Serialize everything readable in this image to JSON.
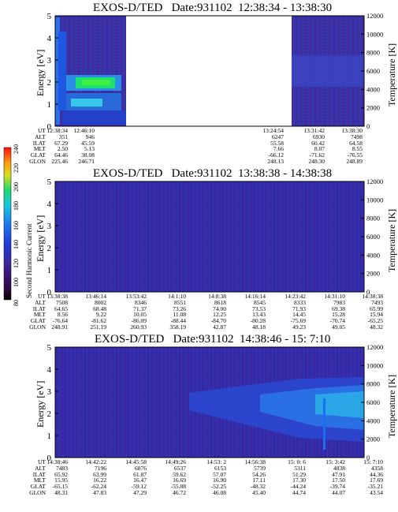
{
  "panels": [
    {
      "title": "EXOS-D/TED   Date:931102  12:38:34 - 13:38:30",
      "ylabel": "Energy [eV]",
      "ylabel2": "Temperature [K]",
      "yticks": [
        "0",
        "1",
        "2",
        "3",
        "4",
        "5"
      ],
      "y2ticks": [
        "0",
        "2000",
        "4000",
        "6000",
        "8000",
        "10000",
        "12000"
      ],
      "rows": [
        {
          "label": "UT",
          "vals": [
            "12:38:34",
            "12:46:10",
            "13:24:54",
            "13:31:42",
            "13:38:30"
          ]
        },
        {
          "label": "ALT",
          "vals": [
            "351",
            "946",
            "6247",
            "6930",
            "7498"
          ]
        },
        {
          "label": "ILAT",
          "vals": [
            "67.29",
            "45.59",
            "55.58",
            "60.42",
            "64.58"
          ]
        },
        {
          "label": "MLT",
          "vals": [
            "2.50",
            "5.13",
            "7.66",
            "8.07",
            "8.55"
          ]
        },
        {
          "label": "GLAT",
          "vals": [
            "64.46",
            "38.08",
            "-66.12",
            "-71.62",
            "-76.55"
          ]
        },
        {
          "label": "GLON",
          "vals": [
            "225.46",
            "246.71",
            "248.13",
            "248.30",
            "248.89"
          ]
        }
      ]
    },
    {
      "title": "EXOS-D/TED   Date:931102  13:38:38 - 14:38:38",
      "ylabel": "Energy [eV]",
      "ylabel2": "Temperature [K]",
      "yticks": [
        "0",
        "1",
        "2",
        "3",
        "4",
        "5"
      ],
      "y2ticks": [
        "0",
        "2000",
        "4000",
        "6000",
        "8000",
        "10000",
        "12000"
      ],
      "rows": [
        {
          "label": "UT",
          "vals": [
            "13:38:38",
            "13:46:14",
            "13:53:42",
            "14:1:10",
            "14:8:38",
            "14:16:14",
            "14:23:42",
            "14:31:10",
            "14:38:38"
          ]
        },
        {
          "label": "ALT",
          "vals": [
            "7508",
            "8002",
            "8346",
            "8551",
            "8618",
            "8545",
            "8333",
            "7983",
            "7493"
          ]
        },
        {
          "label": "ILAT",
          "vals": [
            "64.65",
            "68.48",
            "71.37",
            "73.26",
            "74.00",
            "73.53",
            "71.93",
            "69.38",
            "65.99"
          ]
        },
        {
          "label": "MLT",
          "vals": [
            "8.56",
            "9.22",
            "10.05",
            "11.08",
            "12.25",
            "13.43",
            "14.45",
            "15.28",
            "15.94"
          ]
        },
        {
          "label": "GLAT",
          "vals": [
            "-76.64",
            "-81.62",
            "-86.09",
            "-88.44",
            "-84.70",
            "-80.28",
            "-75.69",
            "-70.74",
            "-65.25"
          ]
        },
        {
          "label": "GLON",
          "vals": [
            "248.91",
            "251.19",
            "260.93",
            "358.19",
            "42.87",
            "48.18",
            "49.23",
            "49.05",
            "48.32"
          ]
        }
      ]
    },
    {
      "title": "EXOS-D/TED   Date:931102  14:38:46 - 15: 7:10",
      "ylabel": "Energy [eV]",
      "ylabel2": "Temperature [K]",
      "yticks": [
        "0",
        "1",
        "2",
        "3",
        "4",
        "5"
      ],
      "y2ticks": [
        "0",
        "2000",
        "4000",
        "6000",
        "8000",
        "10000",
        "12000"
      ],
      "rows": [
        {
          "label": "UT",
          "vals": [
            "14:38:46",
            "14:42:22",
            "14:45:58",
            "14:49:26",
            "14:53: 2",
            "14:56:38",
            "15: 0: 6",
            "15: 3:42",
            "15: 7:10"
          ]
        },
        {
          "label": "ALT",
          "vals": [
            "7483",
            "7196",
            "6876",
            "6537",
            "6153",
            "5739",
            "5311",
            "4838",
            "4358"
          ]
        },
        {
          "label": "ILAT",
          "vals": [
            "65.92",
            "63.99",
            "61.87",
            "59.62",
            "57.07",
            "54.26",
            "51.29",
            "47.91",
            "44.36"
          ]
        },
        {
          "label": "MLT",
          "vals": [
            "15.95",
            "16.22",
            "16.47",
            "16.69",
            "16.90",
            "17.11",
            "17.30",
            "17.50",
            "17.69"
          ]
        },
        {
          "label": "GLAT",
          "vals": [
            "-65.15",
            "-62.24",
            "-59.12",
            "-55.88",
            "-52.25",
            "-48.32",
            "-44.24",
            "-39.74",
            "-35.21"
          ]
        },
        {
          "label": "GLON",
          "vals": [
            "48.31",
            "47.83",
            "47.29",
            "46.72",
            "46.08",
            "45.40",
            "44.74",
            "44.07",
            "43.54"
          ]
        }
      ]
    }
  ],
  "colorbar": {
    "label": "Second Harmonic Current",
    "ticks": [
      "80",
      "100",
      "120",
      "140",
      "160",
      "180",
      "200",
      "220",
      "240"
    ]
  },
  "chart_data": [
    {
      "type": "heatmap",
      "title": "EXOS-D/TED   Date:931102  12:38:34 - 13:38:30",
      "xlabel": "UT",
      "ylabel": "Energy [eV]",
      "y2label": "Temperature [K]",
      "ylim": [
        0,
        5
      ],
      "y2lim": [
        0,
        12000
      ],
      "colorbar_range": [
        80,
        240
      ],
      "data_gaps": [
        [
          "12:53:30",
          "13:24:54"
        ]
      ],
      "features": "Enhanced intensity band near 1.5-2.0 eV around 12:42-12:52; broad high values above 2.5 eV at start of interval"
    },
    {
      "type": "heatmap",
      "title": "EXOS-D/TED   Date:931102  13:38:38 - 14:38:38",
      "xlabel": "UT",
      "ylabel": "Energy [eV]",
      "y2label": "Temperature [K]",
      "ylim": [
        0,
        5
      ],
      "y2lim": [
        0,
        12000
      ],
      "colorbar_range": [
        80,
        240
      ],
      "features": "Uniform low-level background (~110-125) across whole interval"
    },
    {
      "type": "heatmap",
      "title": "EXOS-D/TED   Date:931102  14:38:46 - 15: 7:10",
      "xlabel": "UT",
      "ylabel": "Energy [eV]",
      "y2label": "Temperature [K]",
      "ylim": [
        0,
        5
      ],
      "y2lim": [
        0,
        12000
      ],
      "colorbar_range": [
        80,
        240
      ],
      "features": "Widening enhancement band centred near 2.5 eV from ~14:56 onward, scattered points above 3 eV late in interval"
    }
  ]
}
